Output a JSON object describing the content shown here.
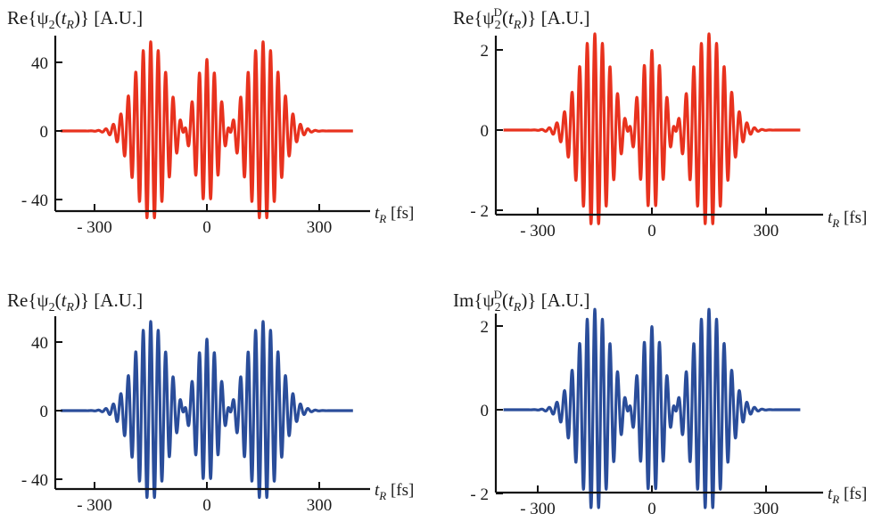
{
  "figure": {
    "panels": [
      {
        "id": "top-left",
        "title": {
          "prefix": "Re{ψ",
          "sub": "2",
          "sup": "",
          "open": "(",
          "t": "t",
          "tsub": "R",
          "close": ")} [A.U.]"
        },
        "xlabel": {
          "t": "t",
          "tsub": "R",
          "unit": "[fs]"
        }
      },
      {
        "id": "top-right",
        "title": {
          "prefix": "Re{ψ",
          "sub": "2",
          "sup": "D",
          "open": "(",
          "t": "t",
          "tsub": "R",
          "close": ")} [A.U.]"
        },
        "xlabel": {
          "t": "t",
          "tsub": "R",
          "unit": "[fs]"
        }
      },
      {
        "id": "bottom-left",
        "title": {
          "prefix": "Re{ψ",
          "sub": "2",
          "sup": "",
          "open": "(",
          "t": "t",
          "tsub": "R",
          "close": ")} [A.U.]"
        },
        "xlabel": {
          "t": "t",
          "tsub": "R",
          "unit": "[fs]"
        }
      },
      {
        "id": "bottom-right",
        "title": {
          "prefix": "Im{ψ",
          "sub": "2",
          "sup": "D",
          "open": "(",
          "t": "t",
          "tsub": "R",
          "close": ")} [A.U.]"
        },
        "xlabel": {
          "t": "t",
          "tsub": "R",
          "unit": "[fs]"
        }
      }
    ]
  },
  "chart_data": [
    {
      "type": "line",
      "color": "#e8321e",
      "xlim": [
        -400,
        400
      ],
      "ylim": [
        -45,
        52
      ],
      "xticks": [
        -300,
        0,
        300
      ],
      "xtick_labels": [
        "- 300",
        "0",
        "300"
      ],
      "yticks": [
        -40,
        0,
        40
      ],
      "ytick_labels": [
        "- 40",
        "0",
        "40"
      ],
      "signal": {
        "envelope_centers": [
          -150,
          0,
          150
        ],
        "envelope_amplitudes": [
          52,
          42,
          52
        ],
        "envelope_widths": [
          62,
          45,
          62
        ],
        "period_fs": 20,
        "x_range": [
          -390,
          390
        ]
      }
    },
    {
      "type": "line",
      "color": "#e8321e",
      "xlim": [
        -400,
        400
      ],
      "ylim": [
        -2.3,
        2.5
      ],
      "xticks": [
        -300,
        0,
        300
      ],
      "xtick_labels": [
        "- 300",
        "0",
        "300"
      ],
      "yticks": [
        -2,
        0,
        2
      ],
      "ytick_labels": [
        "- 2",
        "0",
        "2"
      ],
      "signal": {
        "envelope_centers": [
          -150,
          0,
          150
        ],
        "envelope_amplitudes": [
          2.4,
          2.0,
          2.4
        ],
        "envelope_widths": [
          62,
          45,
          62
        ],
        "period_fs": 20,
        "x_range": [
          -390,
          390
        ]
      }
    },
    {
      "type": "line",
      "color": "#2a4d9a",
      "xlim": [
        -400,
        400
      ],
      "ylim": [
        -45,
        52
      ],
      "xticks": [
        -300,
        0,
        300
      ],
      "xtick_labels": [
        "- 300",
        "0",
        "300"
      ],
      "yticks": [
        -40,
        0,
        40
      ],
      "ytick_labels": [
        "- 40",
        "0",
        "40"
      ],
      "signal": {
        "envelope_centers": [
          -150,
          0,
          150
        ],
        "envelope_amplitudes": [
          52,
          42,
          52
        ],
        "envelope_widths": [
          62,
          45,
          62
        ],
        "period_fs": 20,
        "x_range": [
          -390,
          390
        ]
      }
    },
    {
      "type": "line",
      "color": "#2a4d9a",
      "xlim": [
        -400,
        400
      ],
      "ylim": [
        -2.3,
        2.5
      ],
      "xticks": [
        -300,
        0,
        300
      ],
      "xtick_labels": [
        "- 300",
        "0",
        "300"
      ],
      "yticks": [
        -2,
        0,
        2
      ],
      "ytick_labels": [
        "- 2",
        "0",
        "2"
      ],
      "signal": {
        "envelope_centers": [
          -150,
          0,
          150
        ],
        "envelope_amplitudes": [
          2.4,
          2.0,
          2.4
        ],
        "envelope_widths": [
          62,
          45,
          62
        ],
        "period_fs": 20,
        "x_range": [
          -390,
          390
        ]
      }
    }
  ]
}
